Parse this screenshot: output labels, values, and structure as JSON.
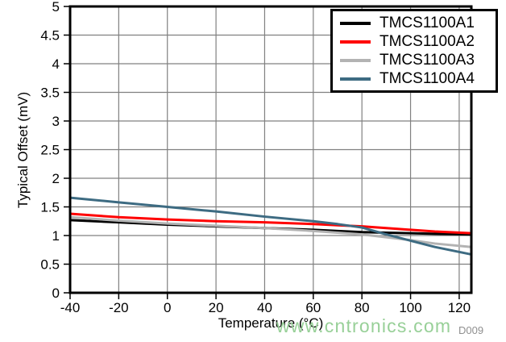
{
  "chart_data": {
    "type": "line",
    "title": "",
    "xlabel": "Temperature (°C)",
    "ylabel": "Typical Offset (mV)",
    "xlim": [
      -40,
      125
    ],
    "ylim": [
      0,
      5
    ],
    "x_ticks": [
      -40,
      -20,
      0,
      20,
      40,
      60,
      80,
      100,
      120
    ],
    "x_tick_labels": [
      "-40",
      "-20",
      "0",
      "20",
      "40",
      "60",
      "80",
      "100",
      "120"
    ],
    "y_ticks": [
      0,
      0.5,
      1,
      1.5,
      2,
      2.5,
      3,
      3.5,
      4,
      4.5,
      5
    ],
    "y_tick_labels": [
      "0",
      "0.5",
      "1",
      "1.5",
      "2",
      "2.5",
      "3",
      "3.5",
      "4",
      "4.5",
      "5"
    ],
    "grid": true,
    "grid_color": "#808080",
    "frame_color": "#000000",
    "legend_position": "top-right",
    "x": [
      -40,
      -20,
      0,
      20,
      40,
      60,
      70,
      80,
      90,
      100,
      110,
      125
    ],
    "series": [
      {
        "name": "TMCS1100A1",
        "color": "#000000",
        "values": [
          1.27,
          1.23,
          1.19,
          1.16,
          1.13,
          1.1,
          1.08,
          1.06,
          1.05,
          1.04,
          1.03,
          1.02
        ]
      },
      {
        "name": "TMCS1100A2",
        "color": "#ff0000",
        "values": [
          1.38,
          1.32,
          1.28,
          1.25,
          1.23,
          1.2,
          1.18,
          1.16,
          1.13,
          1.1,
          1.07,
          1.04
        ]
      },
      {
        "name": "TMCS1100A3",
        "color": "#b3b3b3",
        "values": [
          1.32,
          1.26,
          1.21,
          1.17,
          1.13,
          1.08,
          1.05,
          1.02,
          0.97,
          0.92,
          0.86,
          0.8
        ]
      },
      {
        "name": "TMCS1100A4",
        "color": "#3d6b82",
        "values": [
          1.66,
          1.58,
          1.5,
          1.42,
          1.33,
          1.25,
          1.2,
          1.14,
          1.02,
          0.91,
          0.8,
          0.67
        ]
      }
    ]
  },
  "watermark": {
    "text": "www.cntronics.com",
    "color": "#98d098"
  },
  "figure_id": "D009"
}
